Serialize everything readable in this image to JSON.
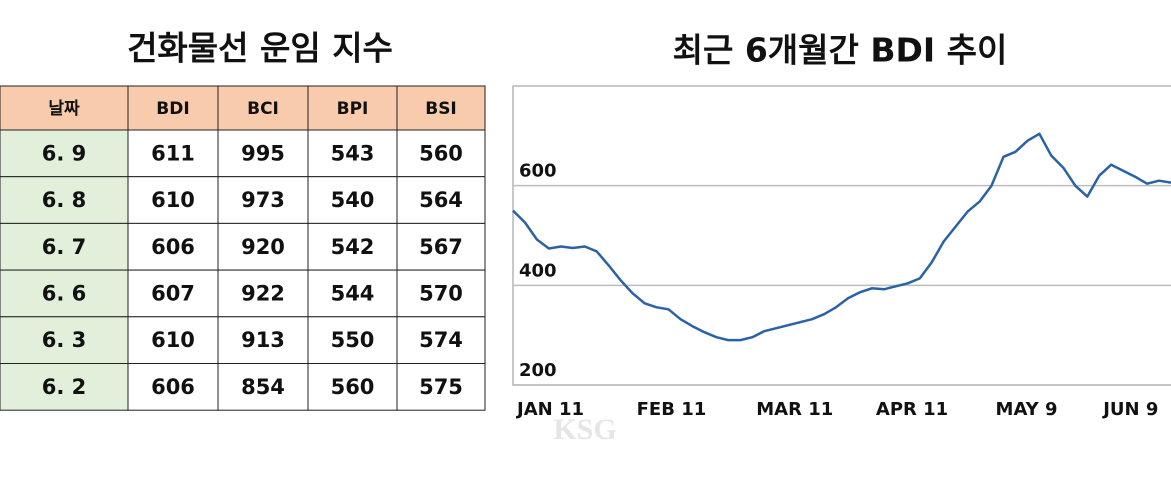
{
  "table": {
    "title": "건화물선 운임 지수",
    "header": [
      "날짜",
      "BDI",
      "BCI",
      "BPI",
      "BSI"
    ],
    "rows": [
      [
        "6. 9",
        611,
        995,
        543,
        560
      ],
      [
        "6. 8",
        610,
        973,
        540,
        564
      ],
      [
        "6. 7",
        606,
        920,
        542,
        567
      ],
      [
        "6. 6",
        607,
        922,
        544,
        570
      ],
      [
        "6. 3",
        610,
        913,
        550,
        574
      ],
      [
        "6. 2",
        606,
        854,
        560,
        575
      ]
    ]
  },
  "chart_data": {
    "type": "line",
    "title": "최근 6개월간 BDI 추이",
    "categories": [
      "JAN 11",
      null,
      null,
      null,
      null,
      null,
      null,
      null,
      null,
      null,
      "FEB 11",
      null,
      null,
      null,
      null,
      null,
      null,
      null,
      null,
      null,
      "MAR 11",
      null,
      null,
      null,
      null,
      null,
      null,
      null,
      null,
      null,
      "APR 11",
      null,
      null,
      null,
      null,
      null,
      null,
      null,
      null,
      null,
      "MAY 9",
      null,
      null,
      null,
      null,
      null,
      null,
      null,
      null,
      "JUN 9",
      null,
      null,
      null,
      null,
      null,
      null
    ],
    "series": [
      {
        "name": "BDI",
        "color": "#2a62a6",
        "values": [
          550,
          526,
          492,
          474,
          478,
          475,
          478,
          468,
          440,
          410,
          384,
          364,
          356,
          352,
          332,
          318,
          306,
          296,
          290,
          290,
          296,
          308,
          314,
          320,
          326,
          332,
          342,
          356,
          374,
          386,
          394,
          392,
          398,
          404,
          414,
          446,
          488,
          518,
          548,
          568,
          600,
          658,
          668,
          690,
          704,
          660,
          636,
          600,
          578,
          620,
          642,
          630,
          618,
          604,
          610,
          606
        ]
      }
    ],
    "ylim": [
      200,
      800
    ],
    "yticks": [
      200,
      400,
      600
    ],
    "grid": true
  },
  "watermark": "KSG"
}
